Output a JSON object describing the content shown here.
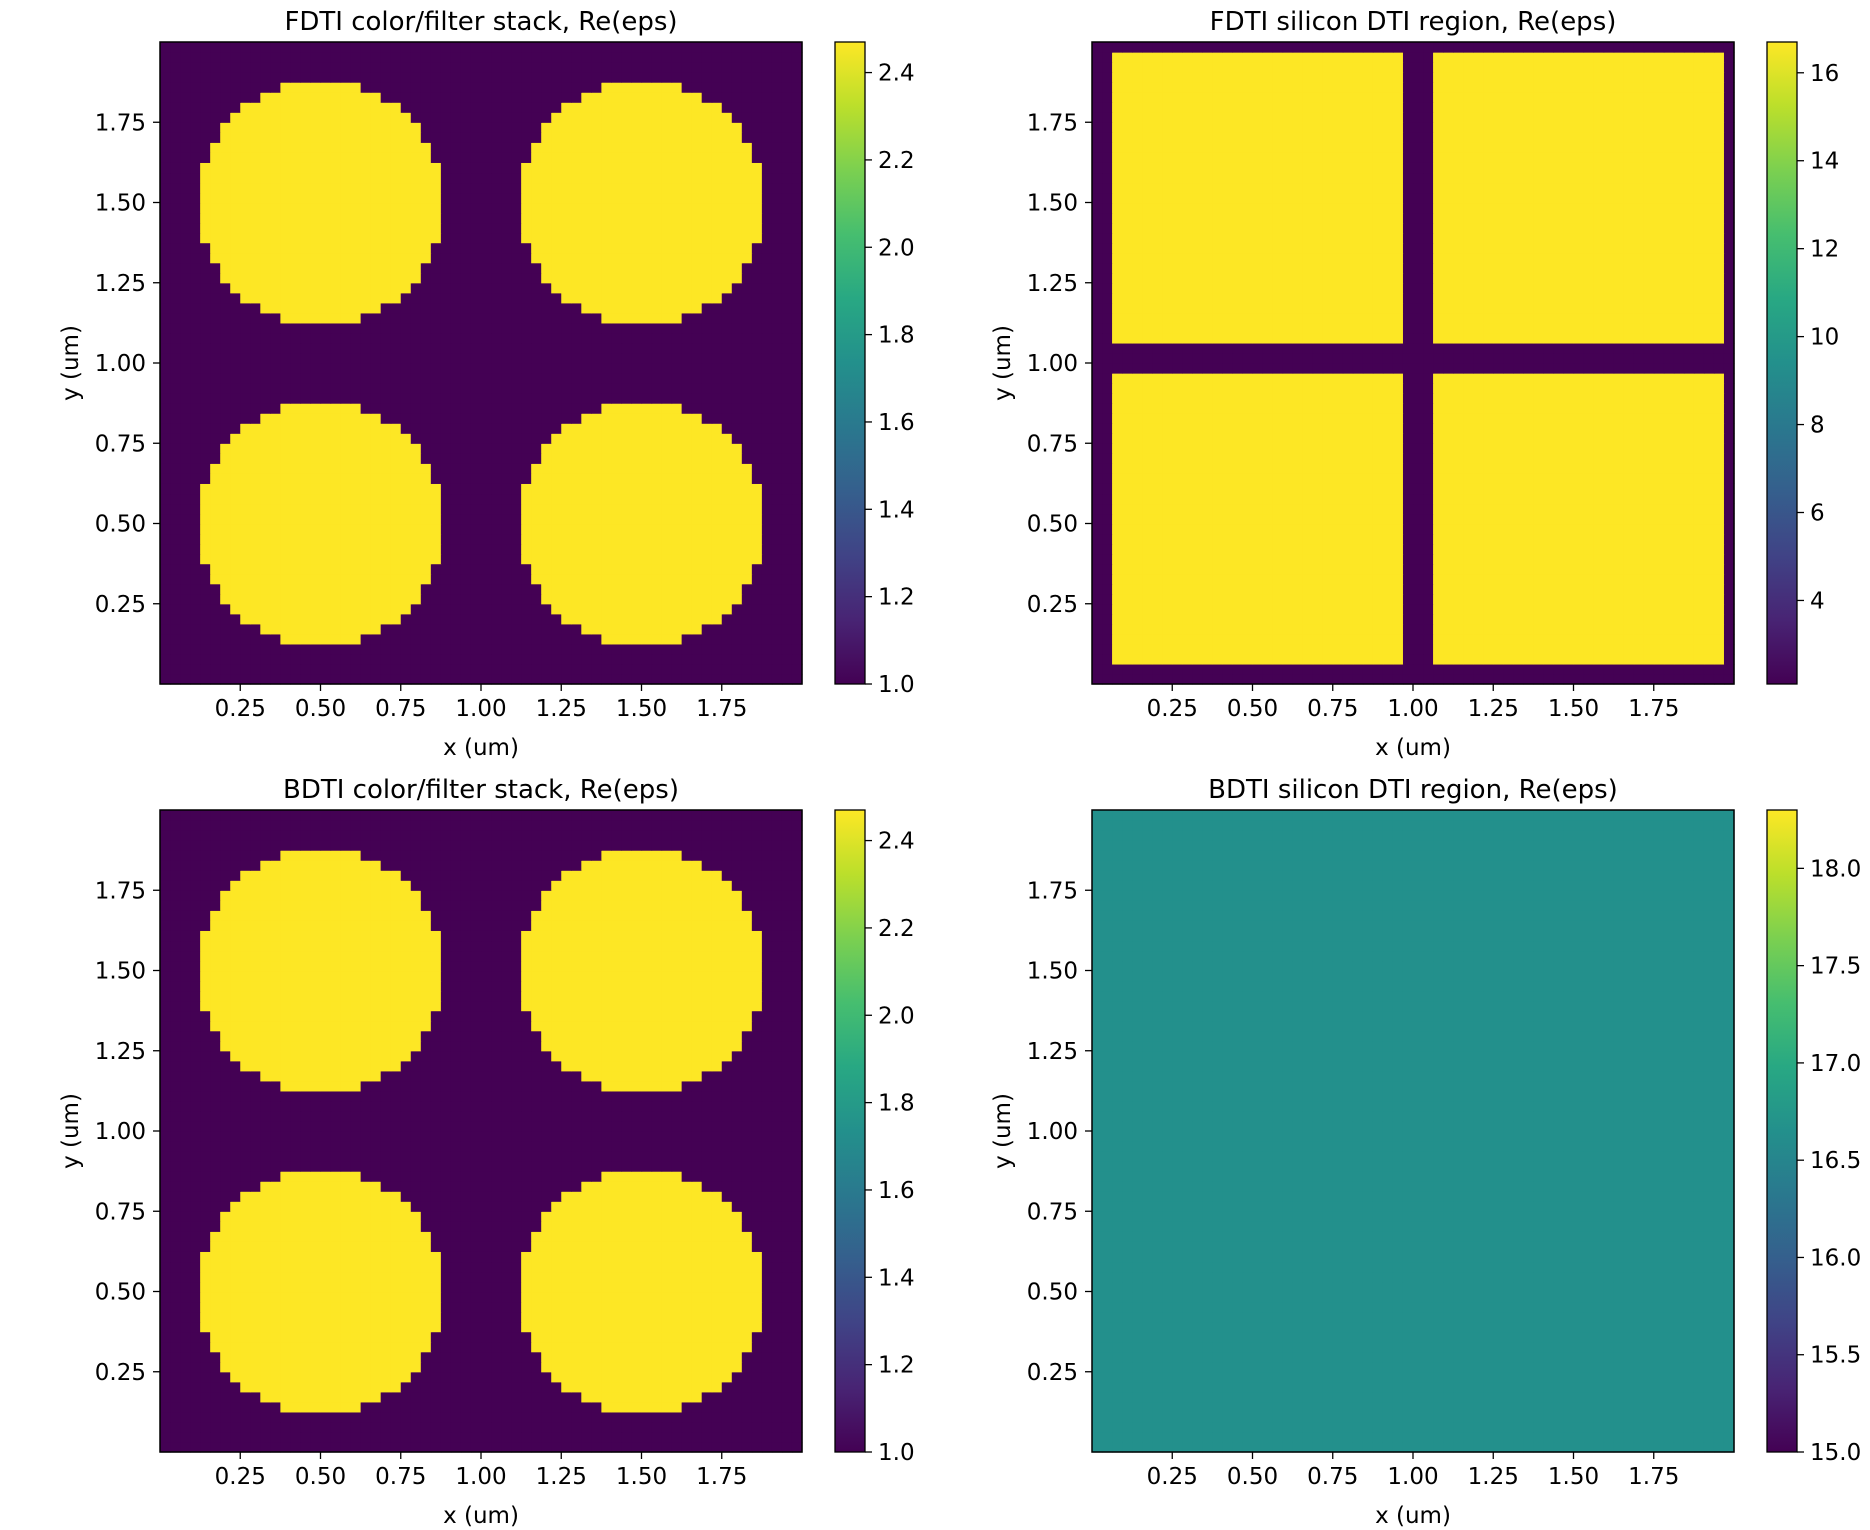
{
  "chart_data": [
    {
      "type": "heatmap",
      "title": "FDTI color/filter stack, Re(eps)",
      "xlabel": "x (um)",
      "ylabel": "y (um)",
      "xlim": [
        0.0,
        2.0
      ],
      "ylim": [
        0.0,
        2.0
      ],
      "xticks": [
        "0.25",
        "0.50",
        "0.75",
        "1.00",
        "1.25",
        "1.50",
        "1.75"
      ],
      "yticks": [
        "0.25",
        "0.50",
        "0.75",
        "1.00",
        "1.25",
        "1.50",
        "1.75"
      ],
      "colorbar": {
        "range": [
          1.0,
          2.47
        ],
        "ticks": [
          "1.0",
          "1.2",
          "1.4",
          "1.6",
          "1.8",
          "2.0",
          "2.2",
          "2.4"
        ]
      },
      "background_value": 1.0,
      "shapes": [
        {
          "shape": "circle",
          "center": [
            0.5,
            1.5
          ],
          "radius": 0.385,
          "value": 2.47
        },
        {
          "shape": "circle",
          "center": [
            1.5,
            1.5
          ],
          "radius": 0.385,
          "value": 2.47
        },
        {
          "shape": "circle",
          "center": [
            0.5,
            0.5
          ],
          "radius": 0.385,
          "value": 2.47
        },
        {
          "shape": "circle",
          "center": [
            1.5,
            0.5
          ],
          "radius": 0.385,
          "value": 2.47
        }
      ]
    },
    {
      "type": "heatmap",
      "title": "FDTI silicon DTI region, Re(eps)",
      "xlabel": "x (um)",
      "ylabel": "y (um)",
      "xlim": [
        0.0,
        2.0
      ],
      "ylim": [
        0.0,
        2.0
      ],
      "xticks": [
        "0.25",
        "0.50",
        "0.75",
        "1.00",
        "1.25",
        "1.50",
        "1.75"
      ],
      "yticks": [
        "0.25",
        "0.50",
        "0.75",
        "1.00",
        "1.25",
        "1.50",
        "1.75"
      ],
      "colorbar": {
        "range": [
          2.1,
          16.7
        ],
        "ticks": [
          "4",
          "6",
          "8",
          "10",
          "12",
          "14",
          "16"
        ]
      },
      "background_value": 2.1,
      "shapes": [
        {
          "shape": "rect",
          "x": [
            0.065,
            0.96
          ],
          "y": [
            1.065,
            1.96
          ],
          "value": 16.7
        },
        {
          "shape": "rect",
          "x": [
            1.065,
            1.96
          ],
          "y": [
            1.065,
            1.96
          ],
          "value": 16.7
        },
        {
          "shape": "rect",
          "x": [
            0.065,
            0.96
          ],
          "y": [
            0.065,
            0.96
          ],
          "value": 16.7
        },
        {
          "shape": "rect",
          "x": [
            1.065,
            1.96
          ],
          "y": [
            0.065,
            0.96
          ],
          "value": 16.7
        }
      ]
    },
    {
      "type": "heatmap",
      "title": "BDTI color/filter stack, Re(eps)",
      "xlabel": "x (um)",
      "ylabel": "y (um)",
      "xlim": [
        0.0,
        2.0
      ],
      "ylim": [
        0.0,
        2.0
      ],
      "xticks": [
        "0.25",
        "0.50",
        "0.75",
        "1.00",
        "1.25",
        "1.50",
        "1.75"
      ],
      "yticks": [
        "0.25",
        "0.50",
        "0.75",
        "1.00",
        "1.25",
        "1.50",
        "1.75"
      ],
      "colorbar": {
        "range": [
          1.0,
          2.47
        ],
        "ticks": [
          "1.0",
          "1.2",
          "1.4",
          "1.6",
          "1.8",
          "2.0",
          "2.2",
          "2.4"
        ]
      },
      "background_value": 1.0,
      "shapes": [
        {
          "shape": "circle",
          "center": [
            0.5,
            1.5
          ],
          "radius": 0.385,
          "value": 2.47
        },
        {
          "shape": "circle",
          "center": [
            1.5,
            1.5
          ],
          "radius": 0.385,
          "value": 2.47
        },
        {
          "shape": "circle",
          "center": [
            0.5,
            0.5
          ],
          "radius": 0.385,
          "value": 2.47
        },
        {
          "shape": "circle",
          "center": [
            1.5,
            0.5
          ],
          "radius": 0.385,
          "value": 2.47
        }
      ]
    },
    {
      "type": "heatmap",
      "title": "BDTI silicon DTI region, Re(eps)",
      "xlabel": "x (um)",
      "ylabel": "y (um)",
      "xlim": [
        0.0,
        2.0
      ],
      "ylim": [
        0.0,
        2.0
      ],
      "xticks": [
        "0.25",
        "0.50",
        "0.75",
        "1.00",
        "1.25",
        "1.50",
        "1.75"
      ],
      "yticks": [
        "0.25",
        "0.50",
        "0.75",
        "1.00",
        "1.25",
        "1.50",
        "1.75"
      ],
      "colorbar": {
        "range": [
          15.0,
          18.3
        ],
        "ticks": [
          "15.0",
          "15.5",
          "16.0",
          "16.5",
          "17.0",
          "17.5",
          "18.0"
        ]
      },
      "background_value": 16.65,
      "shapes": []
    }
  ],
  "colormap": "viridis",
  "colors": {
    "viridis_low": "#440154",
    "viridis_high": "#fde725"
  }
}
